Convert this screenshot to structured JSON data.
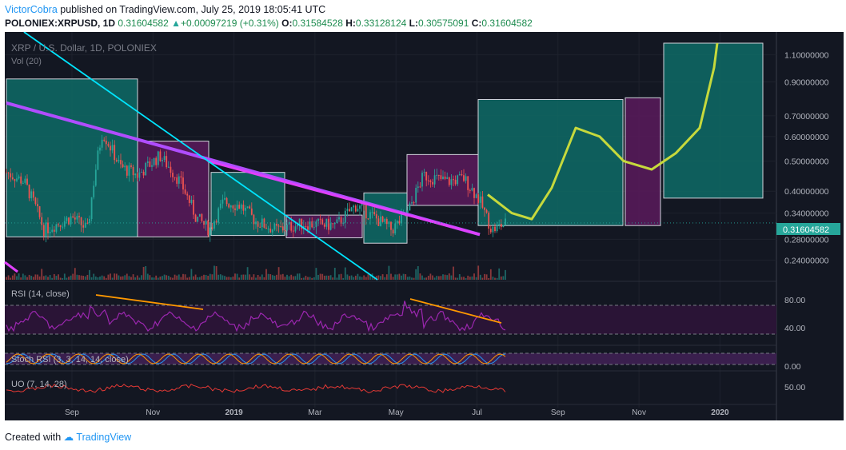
{
  "header": {
    "author": "VictorCobra",
    "published": "published on TradingView.com, July 25, 2019 18:05:41 UTC",
    "symbol": "POLONIEX:XRPUSD, 1D",
    "last": "0.31604582",
    "change": "+0.00097219 (+0.31%)",
    "o_label": "O:",
    "o": "0.31584528",
    "h_label": "H:",
    "h": "0.33128124",
    "l_label": "L:",
    "l": "0.30575091",
    "c_label": "C:",
    "c": "0.31604582"
  },
  "chart": {
    "title": "XRP / U.S. Dollar, 1D, POLONIEX",
    "vol_label": "Vol (20)",
    "price_badge": "0.31604582",
    "rsi_label": "RSI (14, close)",
    "stoch_label": "Stoch RSI (3, 3, 14, 14, close)",
    "uo_label": "UO (7, 14, 28)"
  },
  "chart_data": [
    {
      "type": "line",
      "title": "XRP / U.S. Dollar, 1D, POLONIEX",
      "x": [
        "Sep",
        "Nov",
        "2019",
        "Mar",
        "May",
        "Jul",
        "Sep",
        "Nov",
        "2020"
      ],
      "y_scale": "log",
      "y_ticks": [
        "1.10000000",
        "0.90000000",
        "0.70000000",
        "0.60000000",
        "0.50000000",
        "0.40000000",
        "0.34000000",
        "0.28000000",
        "0.24000000"
      ],
      "ylim": [
        0.22,
        1.2
      ],
      "last_price": 0.31604582,
      "colors": {
        "up": "#26a69a",
        "down": "#ef5350",
        "teal_box": "#0e6b66",
        "purple_box": "#5a1a5c",
        "projection": "#c6d93c",
        "trend_magenta": "#e040fb",
        "trend_cyan": "#00e5ff"
      }
    },
    {
      "type": "line",
      "title": "RSI (14, close)",
      "y_ticks": [
        "80.00",
        "40.00"
      ],
      "ylim": [
        20,
        90
      ],
      "color": "#9c27b0"
    },
    {
      "type": "line",
      "title": "Stoch RSI (3, 3, 14, 14, close)",
      "y_ticks": [
        "0.00"
      ],
      "ylim": [
        0,
        100
      ]
    },
    {
      "type": "line",
      "title": "UO (7, 14, 28)",
      "y_ticks": [
        "50.00"
      ],
      "ylim": [
        30,
        70
      ],
      "color": "#e53935"
    }
  ],
  "footer": {
    "created": "Created with",
    "brand": "TradingView"
  }
}
